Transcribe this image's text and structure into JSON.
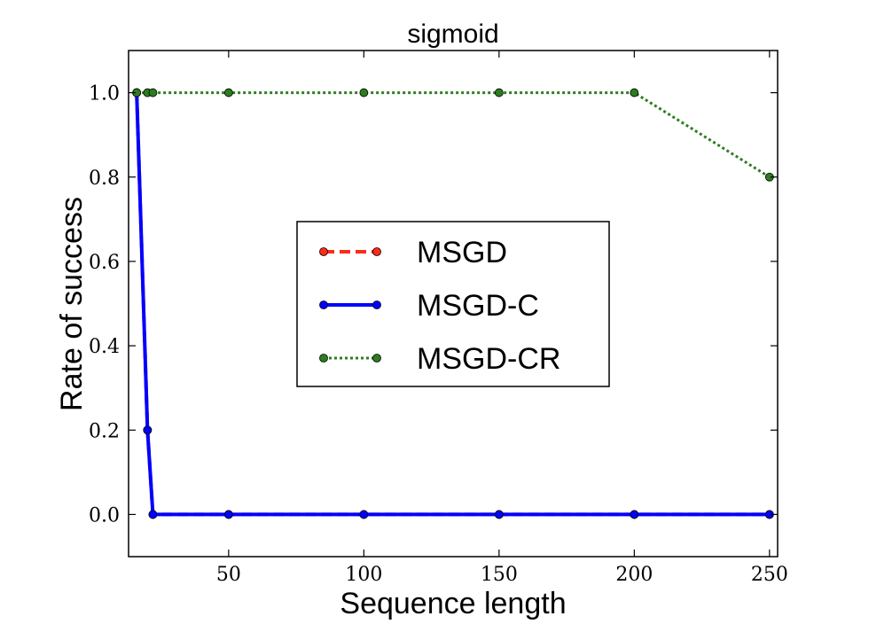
{
  "chart_data": {
    "type": "line",
    "title": "sigmoid",
    "xlabel": "Sequence length",
    "ylabel": "Rate of success",
    "xlim": [
      13,
      253
    ],
    "ylim": [
      -0.1,
      1.1
    ],
    "xticks": [
      50,
      100,
      150,
      200,
      250
    ],
    "yticks": [
      0.0,
      0.2,
      0.4,
      0.6,
      0.8,
      1.0
    ],
    "xtick_labels": [
      "50",
      "100",
      "150",
      "200",
      "250"
    ],
    "ytick_labels": [
      "0.0",
      "0.2",
      "0.4",
      "0.6",
      "0.8",
      "1.0"
    ],
    "grid": false,
    "legend_position": "center",
    "series": [
      {
        "name": "MSGD",
        "color": "#ff2a1a",
        "style": "dashed",
        "marker": "circle",
        "x": [
          16,
          20,
          22,
          50,
          100,
          150,
          200,
          250
        ],
        "y": [
          1.0,
          0.2,
          0.0,
          0.0,
          0.0,
          0.0,
          0.0,
          0.0
        ]
      },
      {
        "name": "MSGD-C",
        "color": "#0000ff",
        "style": "solid",
        "marker": "circle",
        "x": [
          16,
          20,
          22,
          50,
          100,
          150,
          200,
          250
        ],
        "y": [
          1.0,
          0.2,
          0.0,
          0.0,
          0.0,
          0.0,
          0.0,
          0.0
        ]
      },
      {
        "name": "MSGD-CR",
        "color": "#2d7d1f",
        "style": "dotted",
        "marker": "circle",
        "x": [
          16,
          20,
          22,
          50,
          100,
          150,
          200,
          250
        ],
        "y": [
          1.0,
          1.0,
          1.0,
          1.0,
          1.0,
          1.0,
          1.0,
          0.8
        ]
      }
    ]
  }
}
